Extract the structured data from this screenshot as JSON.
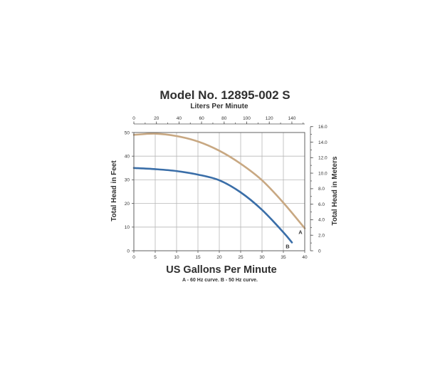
{
  "chart_data": {
    "type": "line",
    "title": "Model No. 12895-002 S",
    "xlabel": "US Gallons Per Minute",
    "x_top_label": "Liters Per Minute",
    "ylabel": "Total Head in Feet",
    "y_right_label": "Total Head in Meters",
    "footnote": "A - 60 Hz curve. B - 50 Hz curve.",
    "xlim": [
      0,
      40
    ],
    "ylim": [
      0,
      50
    ],
    "x_ticks": [
      "0",
      "5",
      "10",
      "15",
      "20",
      "25",
      "30",
      "35",
      "40"
    ],
    "y_ticks": [
      "0",
      "10",
      "20",
      "30",
      "40",
      "50"
    ],
    "x_top_ticks": [
      "0",
      "20",
      "40",
      "60",
      "80",
      "100",
      "120",
      "140"
    ],
    "y_right_ticks": [
      "0",
      "2.0",
      "4.0",
      "6.0",
      "8.0",
      "10.0",
      "12.0",
      "14.0",
      "16.0"
    ],
    "grid": true,
    "series": [
      {
        "name": "A",
        "color": "#c8a882",
        "x": [
          0,
          5,
          10,
          15,
          20,
          25,
          30,
          35,
          40
        ],
        "y": [
          49,
          49.5,
          48.5,
          46.2,
          42.3,
          36.8,
          29.8,
          20.3,
          9.5
        ]
      },
      {
        "name": "B",
        "color": "#3a6ea8",
        "x": [
          0,
          5,
          10,
          15,
          20,
          25,
          30,
          35,
          37
        ],
        "y": [
          35,
          34.5,
          33.7,
          32.2,
          29.8,
          24.7,
          17.3,
          7.8,
          3.5
        ]
      }
    ]
  }
}
